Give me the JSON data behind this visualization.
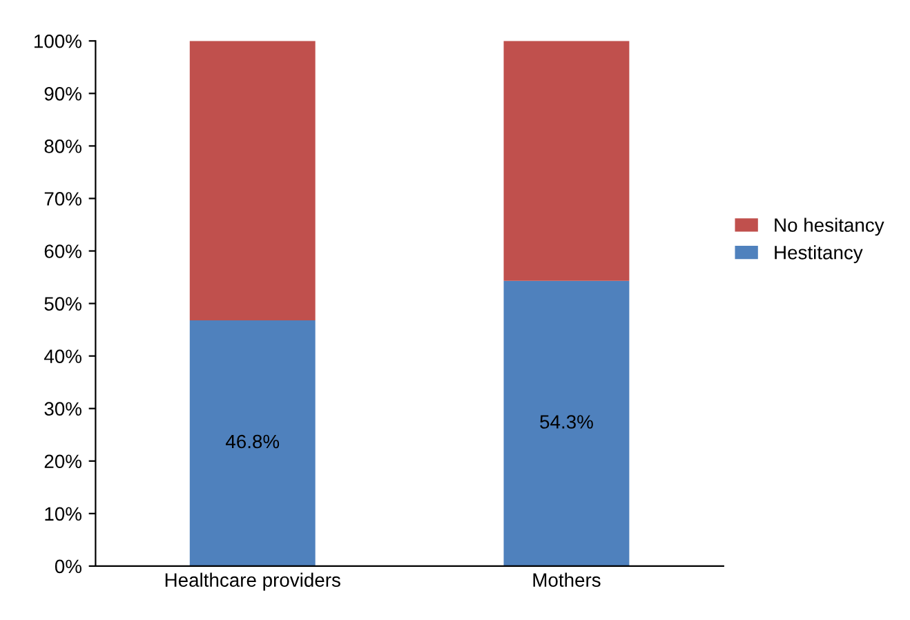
{
  "chart_data": {
    "type": "bar",
    "stacked": true,
    "categories": [
      "Healthcare providers",
      "Mothers"
    ],
    "series": [
      {
        "name": "Hestitancy",
        "color": "#4f81bd",
        "values": [
          46.8,
          54.3
        ],
        "value_labels": [
          "46.8%",
          "54.3%"
        ]
      },
      {
        "name": "No hesitancy",
        "color": "#c0504d",
        "values": [
          53.2,
          45.7
        ]
      }
    ],
    "ylim": [
      0,
      100
    ],
    "yticks": [
      {
        "value": 0,
        "label": "0%"
      },
      {
        "value": 10,
        "label": "10%"
      },
      {
        "value": 20,
        "label": "20%"
      },
      {
        "value": 30,
        "label": "30%"
      },
      {
        "value": 40,
        "label": "40%"
      },
      {
        "value": 50,
        "label": "50%"
      },
      {
        "value": 60,
        "label": "60%"
      },
      {
        "value": 70,
        "label": "70%"
      },
      {
        "value": 80,
        "label": "80%"
      },
      {
        "value": 90,
        "label": "90%"
      },
      {
        "value": 100,
        "label": "100%"
      }
    ],
    "grid": false,
    "legend": "right"
  }
}
